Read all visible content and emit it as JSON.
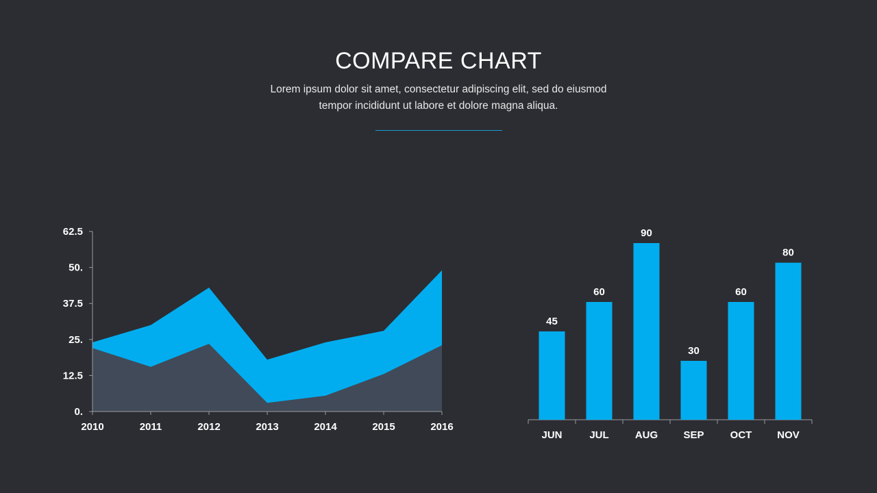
{
  "header": {
    "title": "COMPARE CHART",
    "subtitle_line1": "Lorem ipsum dolor sit amet, consectetur adipiscing elit, sed do eiusmod",
    "subtitle_line2": "tempor incididunt  ut labore et dolore magna aliqua."
  },
  "colors": {
    "background": "#2b2d32",
    "accent": "#02adef",
    "secondary": "#414a58",
    "axis": "#9a9ca0"
  },
  "chart_data": [
    {
      "type": "area",
      "x": [
        "2010",
        "2011",
        "2012",
        "2013",
        "2014",
        "2015",
        "2016"
      ],
      "series": [
        {
          "values": [
            24,
            30,
            43,
            18,
            24,
            28,
            49
          ],
          "color": "#02adef"
        },
        {
          "values": [
            22,
            15.5,
            23.5,
            3,
            5.5,
            13,
            23
          ],
          "color": "#414a58"
        }
      ],
      "y_ticks": [
        "0.",
        "12.5",
        "25.",
        "37.5",
        "50.",
        "62.5"
      ],
      "ylim": [
        0,
        62.5
      ],
      "grid": false,
      "legend": "none"
    },
    {
      "type": "bar",
      "categories": [
        "JUN",
        "JUL",
        "AUG",
        "SEP",
        "OCT",
        "NOV"
      ],
      "values": [
        45,
        60,
        90,
        30,
        60,
        80
      ],
      "ylim": [
        0,
        90
      ],
      "color": "#02adef",
      "grid": false,
      "legend": "none"
    }
  ]
}
